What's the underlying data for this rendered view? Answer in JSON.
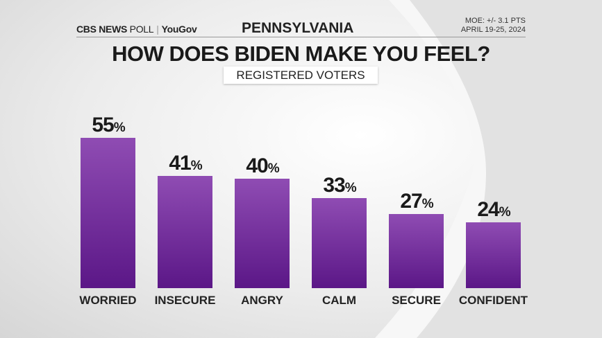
{
  "header": {
    "logo_cbs": "CBS NEWS",
    "logo_poll": "POLL",
    "logo_yougov": "YouGov",
    "state": "PENNSYLVANIA",
    "moe": "MOE: +/- 3.1 PTS",
    "dates": "APRIL 19-25, 2024"
  },
  "chart_data": {
    "type": "bar",
    "title": "HOW DOES BIDEN MAKE YOU FEEL?",
    "subtitle": "REGISTERED VOTERS",
    "categories": [
      "WORRIED",
      "INSECURE",
      "ANGRY",
      "CALM",
      "SECURE",
      "CONFIDENT"
    ],
    "values": [
      55,
      41,
      40,
      33,
      27,
      24
    ],
    "value_suffix": "%",
    "ylim": [
      0,
      55
    ],
    "bar_color": "#7a33a0"
  }
}
